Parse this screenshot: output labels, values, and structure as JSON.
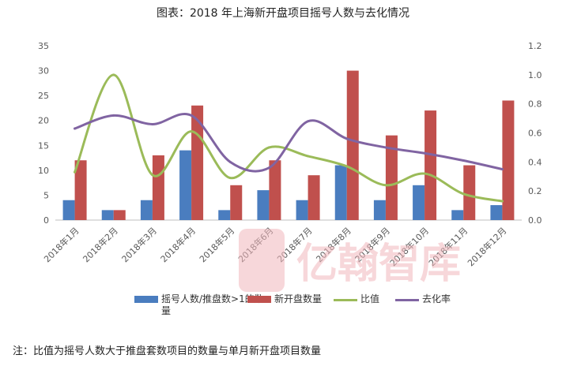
{
  "title": "图表：2018 年上海新开盘项目摇号人数与去化情况",
  "footnote": "注：比值为摇号人数大于推盘套数项目的数量与单月新开盘项目数量",
  "watermark": {
    "text": "亿翰智库",
    "color": "#f2b8bd"
  },
  "chart_data": {
    "type": "bar",
    "categories": [
      "2018年1月",
      "2018年2月",
      "2018年3月",
      "2018年4月",
      "2018年5月",
      "2018年6月",
      "2018年7月",
      "2018年8月",
      "2018年9月",
      "2018年10月",
      "2018年11月",
      "2018年12月"
    ],
    "y_left": {
      "min": 0,
      "max": 35,
      "ticks": [
        "0",
        "5",
        "10",
        "15",
        "20",
        "25",
        "30",
        "35"
      ]
    },
    "y_right": {
      "min": 0,
      "max": 1.2,
      "ticks": [
        "0.0",
        "0.2",
        "0.4",
        "0.6",
        "0.8",
        "1.0",
        "1.2"
      ]
    },
    "series": [
      {
        "name": "摇号人数/推盘数>1的数量",
        "type": "bar",
        "axis": "left",
        "color": "#4a7dbf",
        "values": [
          4,
          2,
          4,
          14,
          2,
          6,
          4,
          11,
          4,
          7,
          2,
          3
        ]
      },
      {
        "name": "新开盘数量",
        "type": "bar",
        "axis": "left",
        "color": "#c0504d",
        "values": [
          12,
          2,
          13,
          23,
          7,
          12,
          9,
          30,
          17,
          22,
          11,
          24
        ]
      },
      {
        "name": "比值",
        "type": "line",
        "axis": "right",
        "color": "#9bbb59",
        "values": [
          0.33,
          1.0,
          0.31,
          0.61,
          0.29,
          0.5,
          0.44,
          0.37,
          0.24,
          0.32,
          0.18,
          0.13
        ]
      },
      {
        "name": "去化率",
        "type": "line",
        "axis": "right",
        "color": "#8064a2",
        "values": [
          0.63,
          0.72,
          0.66,
          0.72,
          0.4,
          0.36,
          0.68,
          0.56,
          0.5,
          0.46,
          0.41,
          0.35
        ]
      }
    ],
    "legend": {
      "position": "bottom"
    },
    "grid": false
  }
}
